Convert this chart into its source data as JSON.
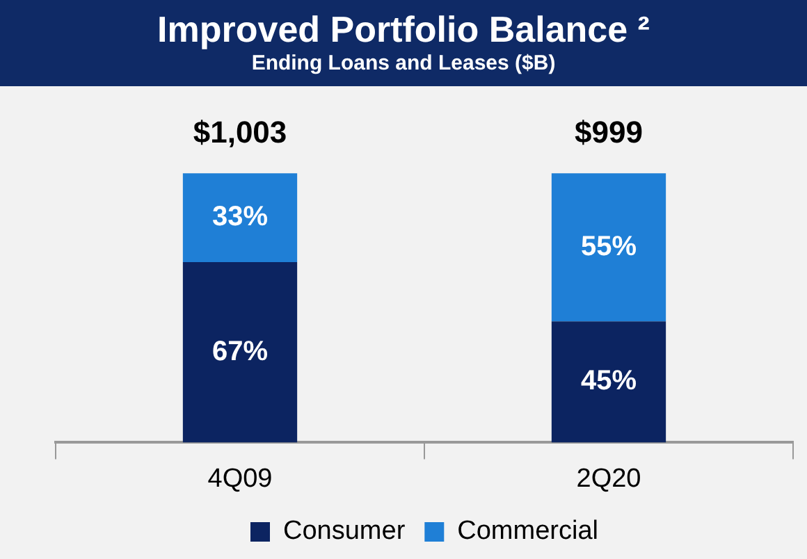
{
  "chart_data": {
    "type": "bar",
    "stacked": true,
    "title": "Improved Portfolio Balance ²",
    "subtitle": "Ending Loans and Leases ($B)",
    "categories": [
      "4Q09",
      "2Q20"
    ],
    "series": [
      {
        "name": "Consumer",
        "color": "#0c2461",
        "values": [
          67,
          45
        ],
        "value_labels": [
          "67%",
          "45%"
        ]
      },
      {
        "name": "Commercial",
        "color": "#1f7fd6",
        "values": [
          33,
          55
        ],
        "value_labels": [
          "33%",
          "55%"
        ]
      }
    ],
    "annotations": [
      "$1,003",
      "$999"
    ],
    "legend": "bottom",
    "grid": false
  }
}
